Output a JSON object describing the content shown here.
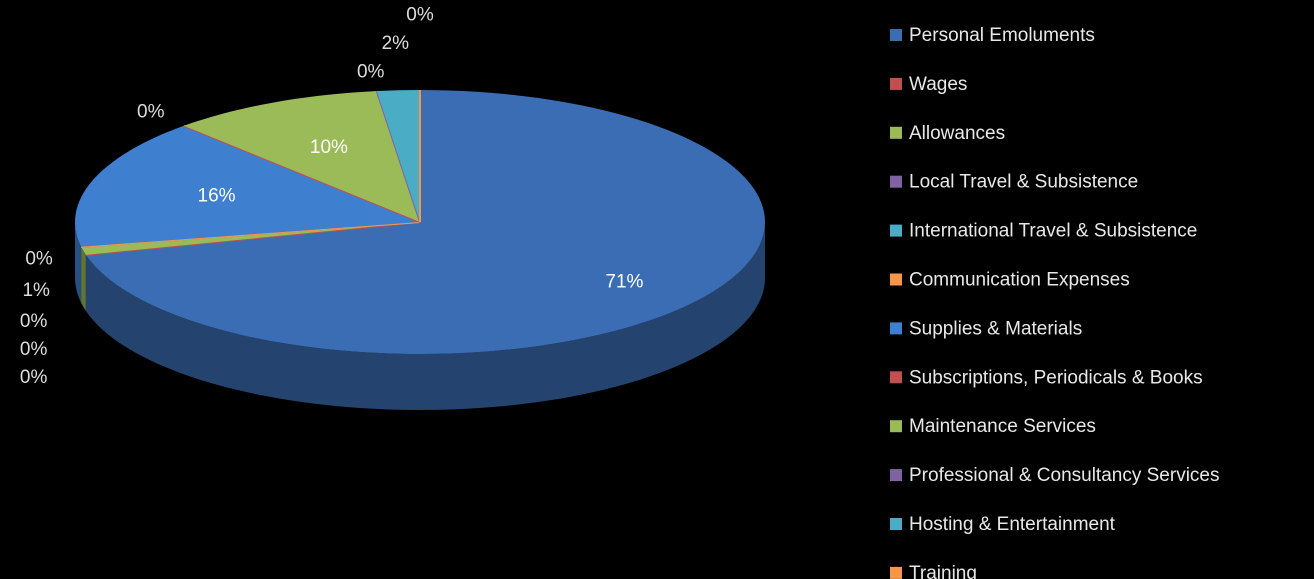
{
  "chart_data": {
    "type": "pie",
    "categories": [
      "Personal Emoluments",
      "Wages",
      "Allowances",
      "Local Travel & Subsistence",
      "International Travel & Subsistence",
      "Communication Expenses",
      "Supplies & Materials",
      "Subscriptions, Periodicals & Books",
      "Maintenance Services",
      "Professional & Consultancy Services",
      "Hosting & Entertainment",
      "Training"
    ],
    "values": [
      71,
      0,
      1,
      0,
      0,
      0,
      16,
      0,
      10,
      0,
      2,
      0
    ],
    "value_labels": [
      "71%",
      "0%",
      "1%",
      "0%",
      "0%",
      "0%",
      "16%",
      "0%",
      "10%",
      "0%",
      "2%",
      "0%"
    ],
    "colors": [
      "#3a6db3",
      "#c0504d",
      "#9bbb59",
      "#8064a2",
      "#4bacc6",
      "#f79646",
      "#3f7fd0",
      "#c0504d",
      "#9bbb59",
      "#8064a2",
      "#4bacc6",
      "#f79646"
    ],
    "legend": "right"
  }
}
